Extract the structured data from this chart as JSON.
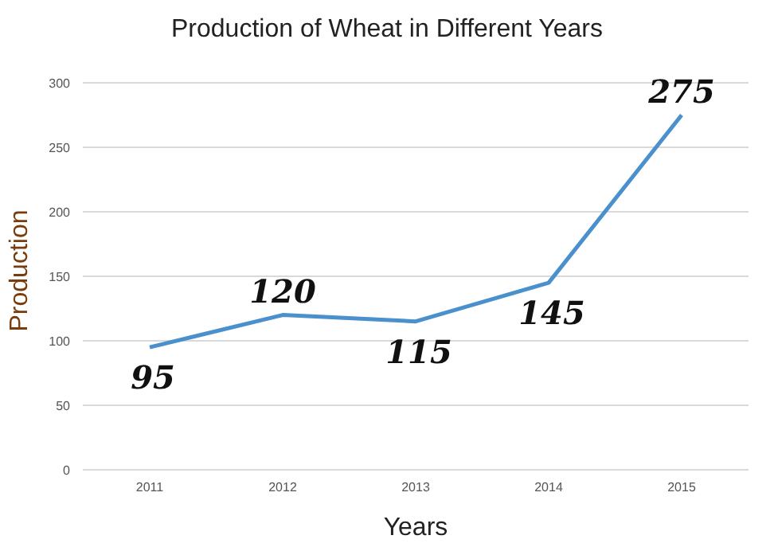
{
  "chart_data": {
    "type": "line",
    "title": "Production of Wheat in Different Years",
    "xlabel": "Years",
    "ylabel": "Production",
    "categories": [
      "2011",
      "2012",
      "2013",
      "2014",
      "2015"
    ],
    "series": [
      {
        "color": "#4a90cc",
        "values": [
          95,
          120,
          115,
          145,
          275
        ]
      }
    ],
    "ylim": [
      0,
      300
    ],
    "yticks": [
      0,
      50,
      100,
      150,
      200,
      250,
      300
    ],
    "grid": "y",
    "legend": false,
    "marker": "none",
    "line_style": "solid",
    "data_labels": true
  }
}
